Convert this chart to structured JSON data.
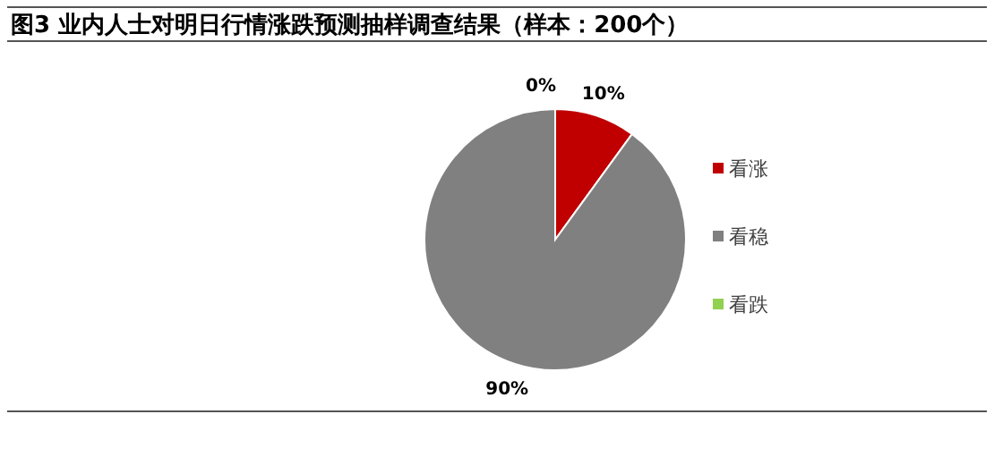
{
  "chart_data": {
    "type": "pie",
    "title": "图3 业内人士对明日行情涨跌预测抽样调查结果（样本：200个）",
    "categories": [
      "看涨",
      "看稳",
      "看跌"
    ],
    "values": [
      10,
      90,
      0
    ],
    "value_labels": [
      "10%",
      "90%",
      "0%"
    ],
    "colors": [
      "#c00000",
      "#808080",
      "#92d050"
    ],
    "legend": "right"
  }
}
